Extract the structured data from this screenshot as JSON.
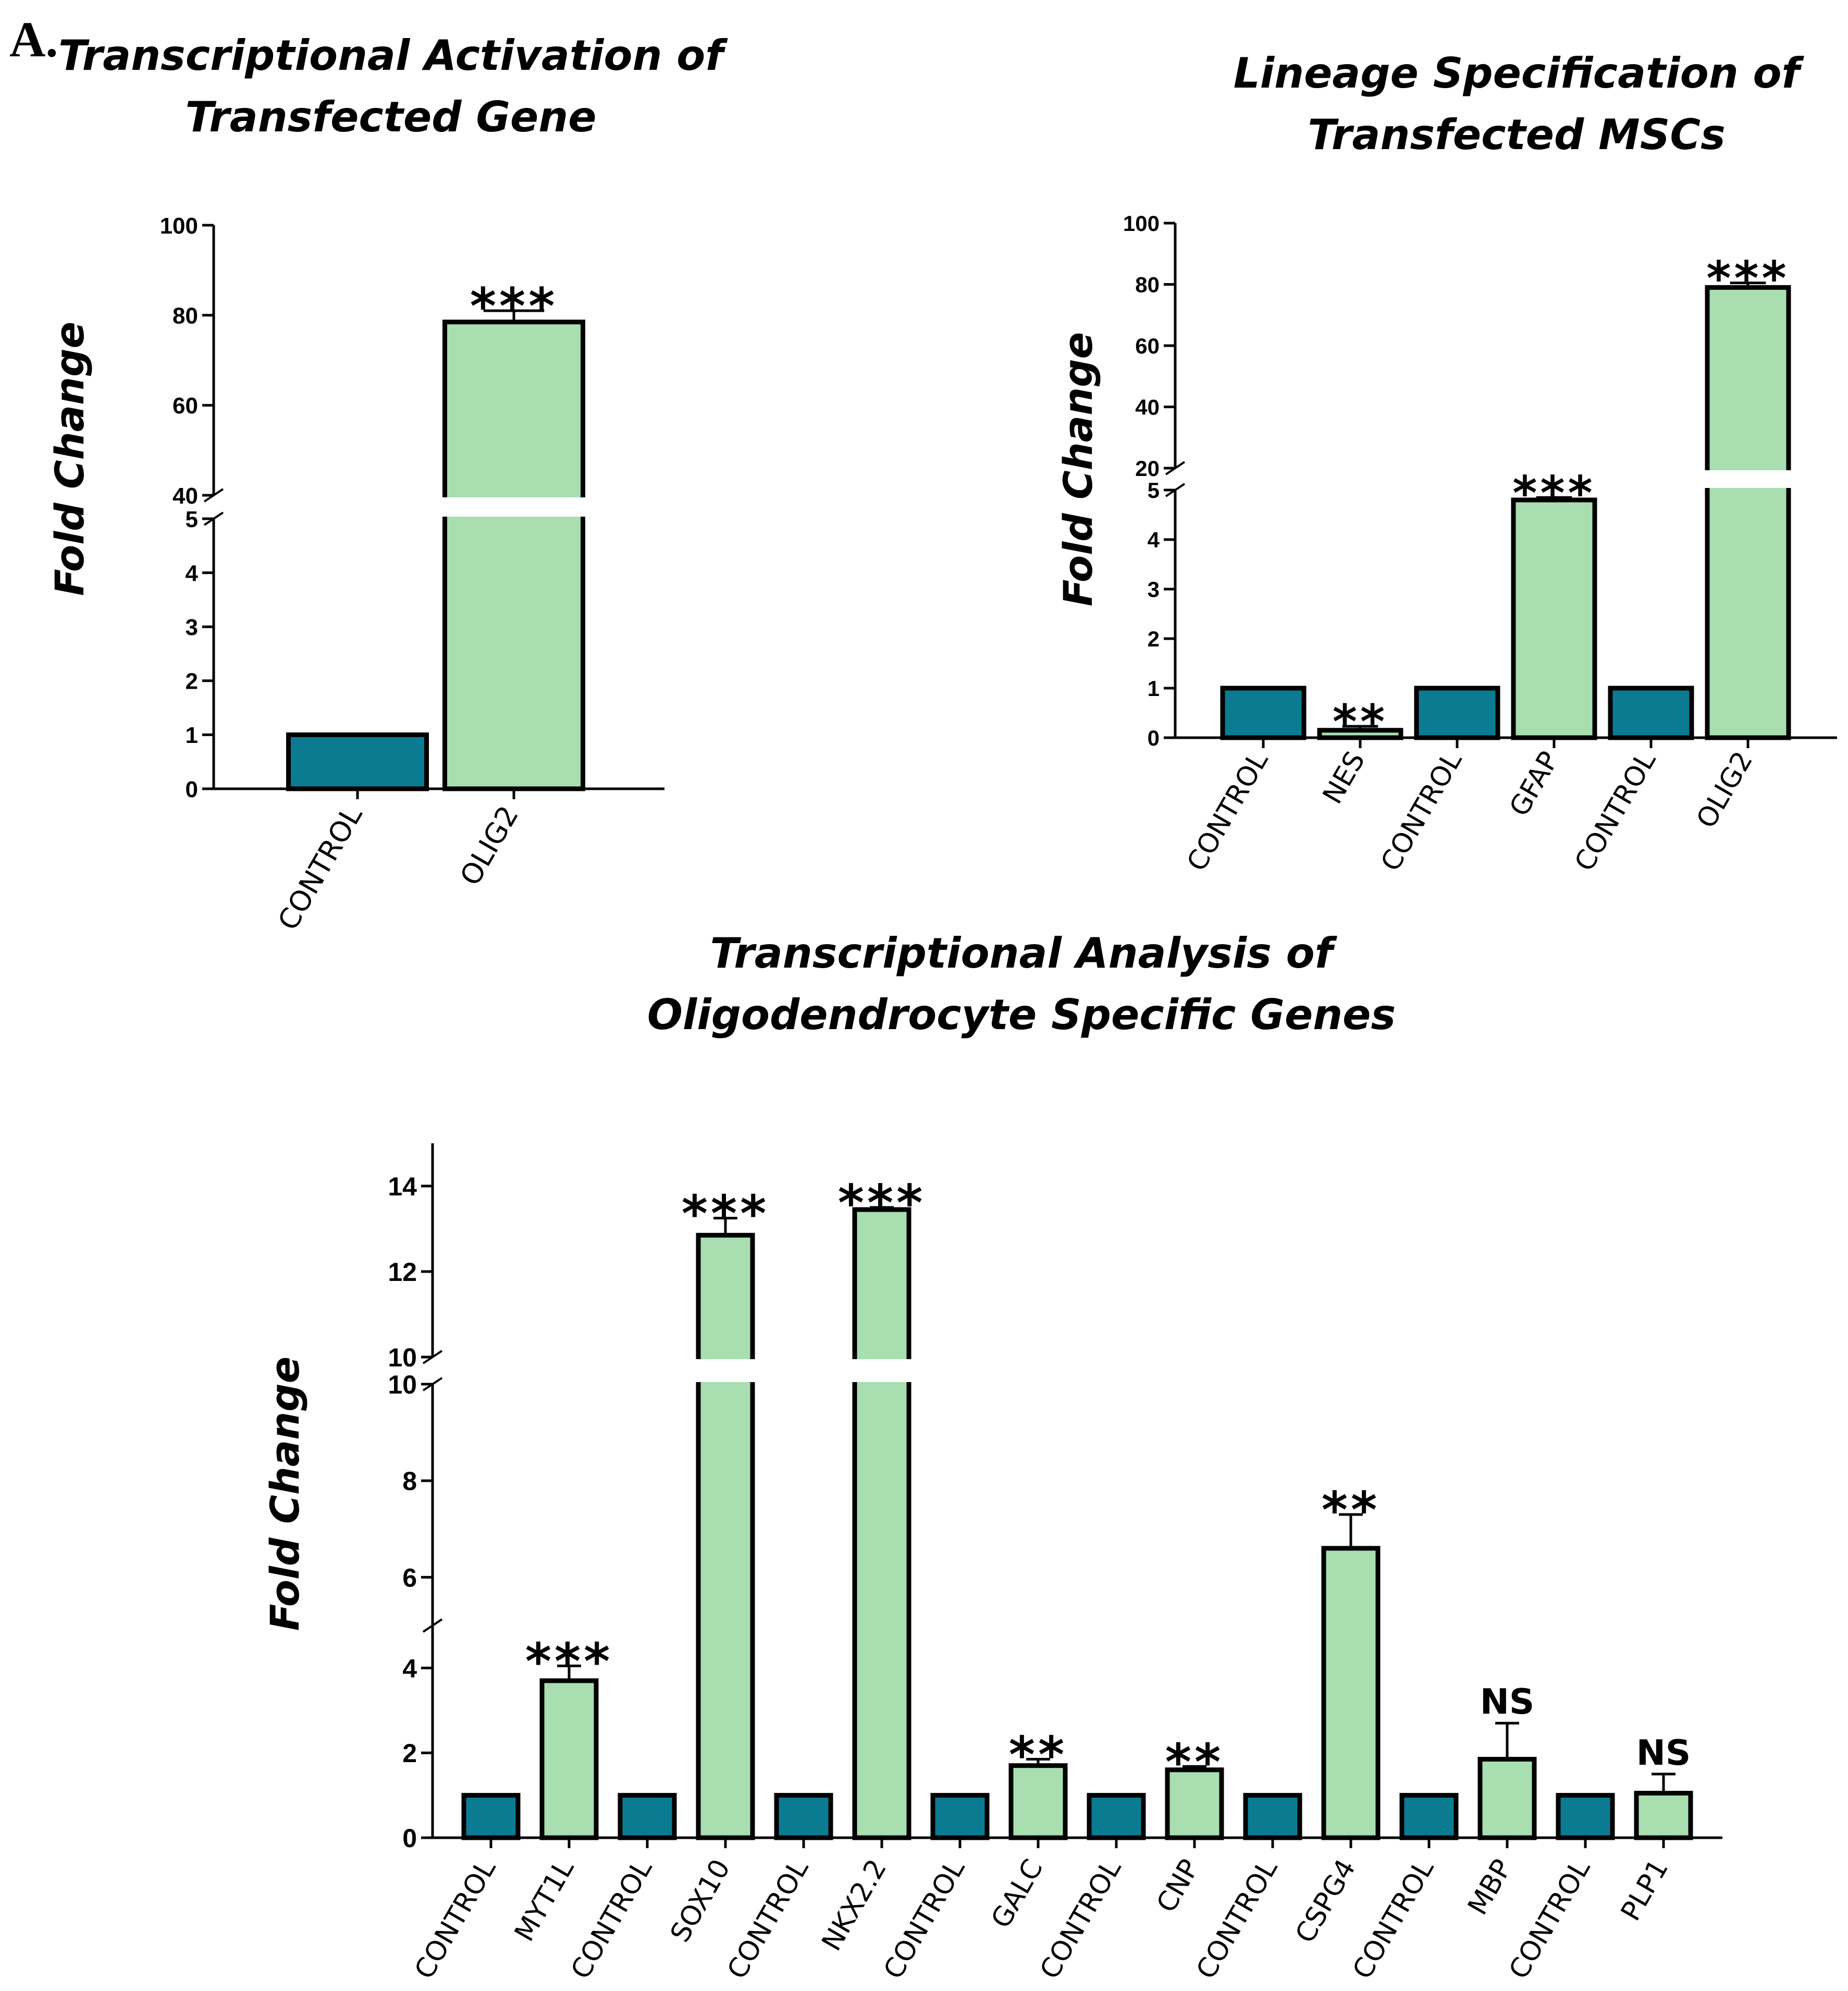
{
  "panel_label": "A.",
  "colors": {
    "control": "#0b7b92",
    "treated": "#a8deb0",
    "outline": "#000000"
  },
  "chart_data": [
    {
      "type": "bar",
      "title": "Transcriptional Activation of Transfected Gene",
      "title_lines": [
        "Transcriptional Activation of",
        "Transfected Gene"
      ],
      "ylabel": "Fold Change",
      "y_segments": [
        {
          "ylim": [
            0,
            5
          ],
          "ticks": [
            0,
            1,
            2,
            3,
            4,
            5
          ]
        },
        {
          "ylim": [
            40,
            100
          ],
          "ticks": [
            40,
            60,
            80,
            100
          ]
        }
      ],
      "categories": [
        "CONTROL",
        "OLIG2"
      ],
      "values": [
        1,
        78.5
      ],
      "errors": [
        0,
        2.5
      ],
      "groups": [
        "control",
        "treated"
      ],
      "significance": [
        "",
        "***"
      ]
    },
    {
      "type": "bar",
      "title": "Lineage Specification of Transfected MSCs",
      "title_lines": [
        "Lineage Specification of",
        "Transfected MSCs"
      ],
      "ylabel": "Fold Change",
      "y_segments": [
        {
          "ylim": [
            0,
            5
          ],
          "ticks": [
            0,
            1,
            2,
            3,
            4,
            5
          ]
        },
        {
          "ylim": [
            20,
            100
          ],
          "ticks": [
            20,
            40,
            60,
            80,
            100
          ]
        }
      ],
      "categories": [
        "CONTROL",
        "NES",
        "CONTROL",
        "GFAP",
        "CONTROL",
        "OLIG2"
      ],
      "values": [
        1,
        0.15,
        1,
        4.8,
        1,
        79
      ],
      "errors": [
        0,
        0.08,
        0,
        0.05,
        0,
        1.5
      ],
      "groups": [
        "control",
        "treated",
        "control",
        "treated",
        "control",
        "treated"
      ],
      "significance": [
        "",
        "**",
        "",
        "***",
        "",
        "***"
      ]
    },
    {
      "type": "bar",
      "title": "Transcriptional Analysis of Oligodendrocyte Specific Genes",
      "title_lines": [
        "Transcriptional Analysis of",
        "Oligodendrocyte Specific Genes"
      ],
      "ylabel": "Fold Change",
      "y_segments": [
        {
          "ylim": [
            0,
            5
          ],
          "ticks": [
            0,
            2,
            4
          ]
        },
        {
          "ylim": [
            5,
            10
          ],
          "ticks": [
            6,
            8,
            10
          ]
        },
        {
          "ylim": [
            10,
            15
          ],
          "ticks": [
            10,
            12,
            14
          ]
        }
      ],
      "categories": [
        "CONTROL",
        "MYT1L",
        "CONTROL",
        "SOX10",
        "CONTROL",
        "NKX2.2",
        "CONTROL",
        "GALC",
        "CONTROL",
        "CNP",
        "CONTROL",
        "CSPG4",
        "CONTROL",
        "MBP",
        "CONTROL",
        "PLP1"
      ],
      "values": [
        1,
        3.7,
        1,
        12.85,
        1,
        13.45,
        1,
        1.7,
        1,
        1.6,
        1,
        6.6,
        1,
        1.85,
        1,
        1.05
      ],
      "errors": [
        0,
        0.35,
        0,
        0.4,
        0,
        0.05,
        0,
        0.15,
        0,
        0.08,
        0,
        0.7,
        0,
        0.85,
        0,
        0.45
      ],
      "groups": [
        "control",
        "treated",
        "control",
        "treated",
        "control",
        "treated",
        "control",
        "treated",
        "control",
        "treated",
        "control",
        "treated",
        "control",
        "treated",
        "control",
        "treated"
      ],
      "significance": [
        "",
        "***",
        "",
        "***",
        "",
        "***",
        "",
        "**",
        "",
        "**",
        "",
        "**",
        "",
        "NS",
        "",
        "NS"
      ]
    }
  ]
}
